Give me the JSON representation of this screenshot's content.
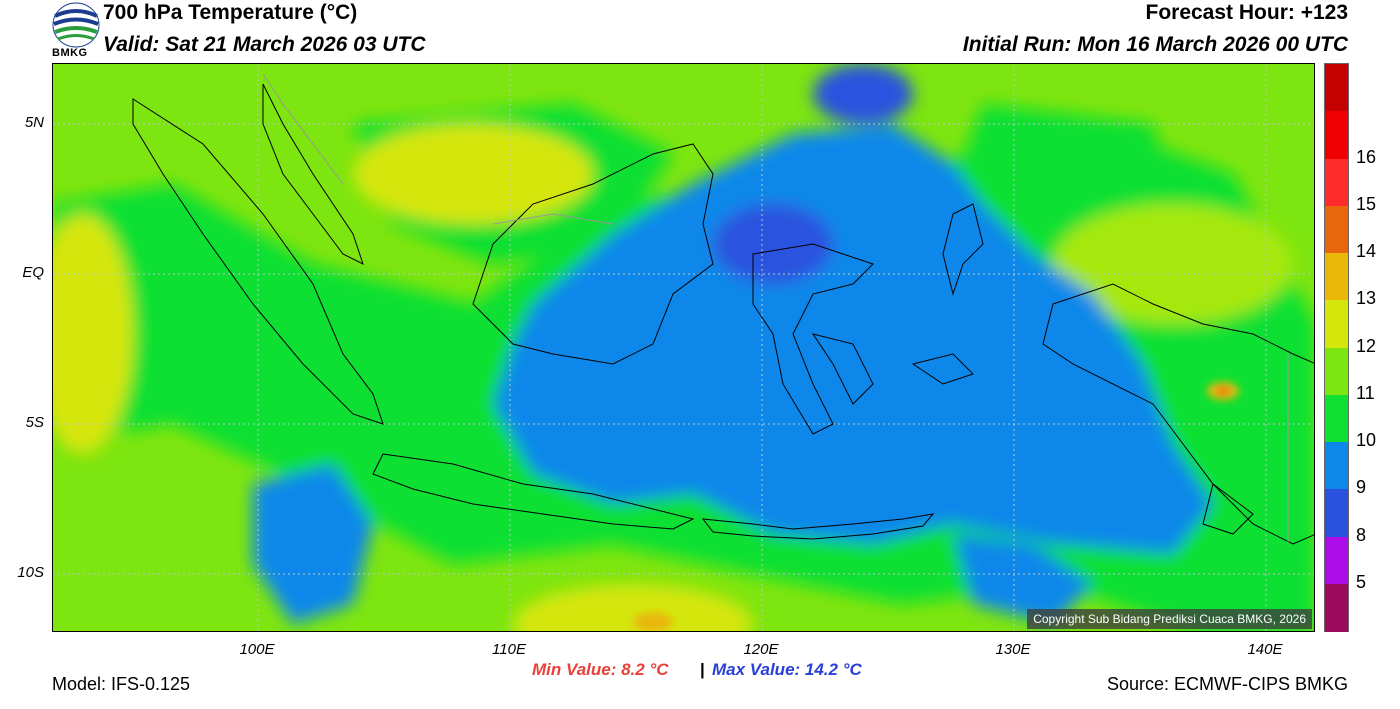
{
  "header": {
    "title": "700 hPa Temperature (°C)",
    "valid": "Valid: Sat 21 March 2026 03 UTC",
    "forecast_hour": "Forecast Hour: +123",
    "initial_run": "Initial Run: Mon 16 March 2026 00 UTC",
    "logo_text": "BMKG"
  },
  "map": {
    "lat_labels": [
      "5N",
      "EQ",
      "5S",
      "10S"
    ],
    "lon_labels": [
      "100E",
      "110E",
      "120E",
      "130E",
      "140E"
    ],
    "copyright": "Copyright Sub Bidang Prediksi Cuaca BMKG, 2026"
  },
  "colorbar": {
    "labels": [
      "16",
      "15",
      "14",
      "13",
      "12",
      "11",
      "10",
      "9",
      "8",
      "5"
    ],
    "colors": [
      "#c40000",
      "#f00000",
      "#ff2c2c",
      "#e8670c",
      "#e9b80b",
      "#d5e60c",
      "#7de50f",
      "#10e030",
      "#0c88ea",
      "#2a52df",
      "#ad0de8",
      "#9c0c5c"
    ]
  },
  "stats": {
    "min": "Min Value: 8.2 °C",
    "separator": "|",
    "max": "Max Value: 14.2 °C"
  },
  "footer": {
    "model": "Model: IFS-0.125",
    "source": "Source: ECMWF-CIPS BMKG"
  }
}
